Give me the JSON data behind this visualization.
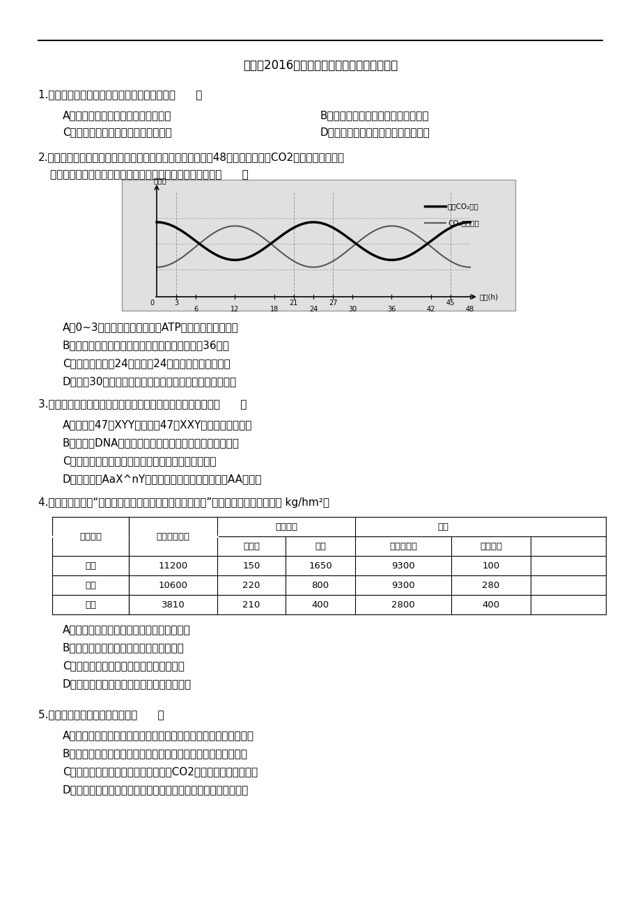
{
  "title": "丰台区2016年高三年级第二学期二模生物试题",
  "background": "#ffffff",
  "q1_number": "1.",
  "q1_text": "下列对生物细胞代谢活动的描述，正确的是（      ）",
  "q1_opts": [
    [
      "A．蓝藻进行光合作用的场所是叶绿体",
      "B．酵母菌的高尔基体负责合成蛋白质"
    ],
    [
      "C．大肠杆菌的转录和翻译均在拟核区",
      "D．乳酸杆菌在细胞质基质中产生乳酸"
    ]
  ],
  "q2_number": "2.",
  "q2_text": "某研究小组在密闭恒温玻璃温室内进行植物栽培实验，连续48小时测定温室内CO2吸收速率，得到如",
  "q2_text2": "图所示曲线（整个过程呼吸速率恒定），据图分析正确的是（      ）",
  "q2_opts": [
    "A．0~3小时植物叶肉细胞中的ATP只来源于细胞质基质",
    "B．实验中绿色植物光合速率达到最大的时刻是第36小时",
    "C．实验开始的前24小时比后24小时的平均光照强度强",
    "D．若第30小时部分叶片遮光，则未遮光叶片光合速率下降"
  ],
  "q3_number": "3.",
  "q3_text": "下列现象中，与减数分裂同源染色体联会行为一定有关的是（      ）",
  "q3_opts": [
    "A．人类的47，XYY综合征和47，XXY综合征个体的形成",
    "B．线粒体DNA突变会导致在培养大菌酵母菌时出现小菌落",
    "C．一个精原细胞减数分裂时产生四种比例相同的配子",
    "D．基因型为AaX^nY小鼠产生一个不含性染色体的AA型配子"
  ],
  "q4_number": "4.",
  "q4_text": "研究人员调查了“不同放牧强度对植物现存生物量的影响”，结果如下表。（单位是 kg/hm²）",
  "q4_table_rows": [
    [
      "轻度",
      "11200",
      "150",
      "1650",
      "9300",
      "100"
    ],
    [
      "中度",
      "10600",
      "220",
      "800",
      "9300",
      "280"
    ],
    [
      "重度",
      "3810",
      "210",
      "400",
      "2800",
      "400"
    ]
  ],
  "q4_opts": [
    "A．有害植物生物量增加的原因是捕食者减少",
    "B．牧草与杂草之间的竞争破坏物种多样性",
    "C．重度放牧可能相起草原群落的次生演替",
    "D．牧草呼吸消耗增加导致现存的生物量减少"
  ],
  "q5_number": "5.",
  "q5_text": "下列有关实验的叙述正确的是（      ）",
  "q5_opts": [
    "A．制备植物原生质体时可在适宜的高渗溶液中用酶解法去除细胞壁",
    "B．以苹果为原料酿制果酒和果醋时，应先提供氧气进行果醋发酵",
    "C．在外植体脱分化时，应通入足量的CO2以满足光合作用的需要",
    "D．利用稀释涂布平板法对大肠杆菌计数时需要借助于显微镜观察"
  ]
}
